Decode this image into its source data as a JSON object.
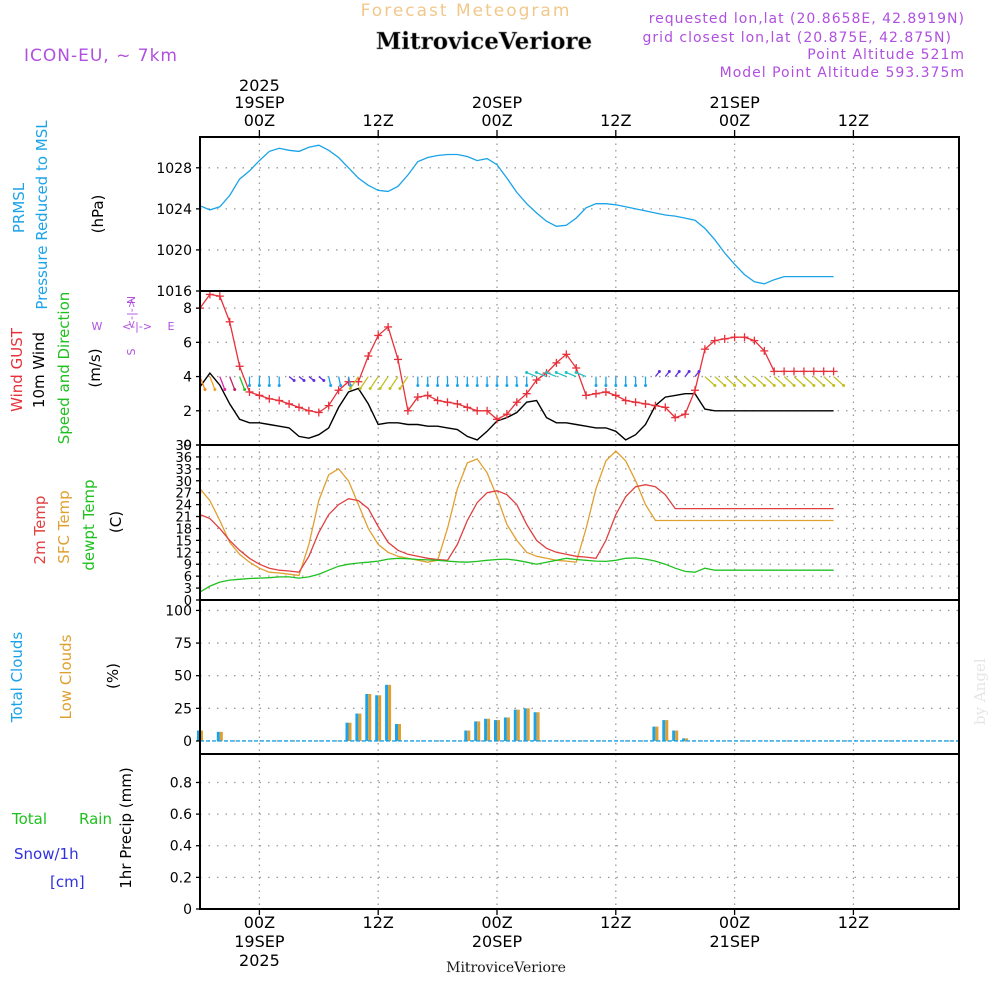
{
  "header": {
    "forecast_title": "Forecast Meteogram",
    "location": "MitroviceVeriore",
    "model": "ICON-EU, ~ 7km",
    "requested": "requested lon,lat (20.8658E, 42.8919N)",
    "grid_closest": "grid closest lon,lat (20.875E, 42.875N)",
    "point_alt": "Point Altitude 521m",
    "model_alt": "Model Point Altitude 593.375m",
    "credit": "by Angel",
    "footer_location": "MitroviceVeriore"
  },
  "time_axis": {
    "start": "2025-09-18T18:00Z",
    "hours": 65,
    "top_labels": [
      {
        "h": 6,
        "lines": [
          "2025",
          "19SEP",
          "00Z"
        ]
      },
      {
        "h": 18,
        "lines": [
          "12Z"
        ]
      },
      {
        "h": 30,
        "lines": [
          "20SEP",
          "00Z"
        ]
      },
      {
        "h": 42,
        "lines": [
          "12Z"
        ]
      },
      {
        "h": 54,
        "lines": [
          "21SEP",
          "00Z"
        ]
      },
      {
        "h": 66,
        "lines": [
          "12Z"
        ]
      }
    ],
    "bottom_labels": [
      {
        "h": 6,
        "lines": [
          "00Z",
          "19SEP",
          "2025"
        ]
      },
      {
        "h": 18,
        "lines": [
          "12Z"
        ]
      },
      {
        "h": 30,
        "lines": [
          "00Z",
          "20SEP"
        ]
      },
      {
        "h": 42,
        "lines": [
          "12Z"
        ]
      },
      {
        "h": 54,
        "lines": [
          "00Z",
          "21SEP"
        ]
      },
      {
        "h": 66,
        "lines": [
          "12Z"
        ]
      }
    ]
  },
  "colors": {
    "pressure": "#1aa3e8",
    "gust": "#e8303a",
    "wind": "#000000",
    "t2m": "#e04040",
    "sfc": "#e0a030",
    "dewpt": "#20c020",
    "total_clouds": "#1aa3e8",
    "low_clouds": "#e0a030",
    "rain": "#20c020",
    "snow": "#3030e0",
    "violet": "#b050e0",
    "title_orange": "#f2c88a"
  },
  "panel_labels": {
    "pressure": [
      "PRMSL",
      "Pressure Reduced to MSL",
      "(hPa)"
    ],
    "wind": [
      "Wind GUST",
      "10m Wind",
      "Speed and Direction",
      "(m/s)"
    ],
    "compass": {
      "n": "N",
      "s": "S",
      "w": "W",
      "e": "E",
      "arrow": "<-|->"
    },
    "temp": [
      "2m Temp",
      "SFC Temp",
      "dewpt Temp",
      "(C)"
    ],
    "clouds": [
      "Total Clouds",
      "Low Clouds",
      "(%)"
    ],
    "precip": [
      "Total",
      "Rain",
      "Snow/1h",
      "[cm]",
      "1hr Precip (mm)"
    ]
  },
  "chart_data": [
    {
      "type": "line",
      "title": "PRMSL Pressure Reduced to MSL",
      "ylabel": "(hPa)",
      "ylim": [
        1016,
        1031
      ],
      "yticks": [
        1016,
        1020,
        1024,
        1028
      ],
      "x_hours": [
        0,
        1,
        2,
        3,
        4,
        5,
        6,
        7,
        8,
        9,
        10,
        11,
        12,
        13,
        14,
        15,
        16,
        17,
        18,
        19,
        20,
        21,
        22,
        23,
        24,
        25,
        26,
        27,
        28,
        29,
        30,
        31,
        32,
        33,
        34,
        35,
        36,
        37,
        38,
        39,
        40,
        41,
        42,
        43,
        44,
        45,
        46,
        47,
        48,
        49,
        50,
        51,
        52,
        53,
        54,
        55,
        56,
        57,
        58,
        59,
        60,
        61,
        62,
        63,
        64
      ],
      "series": [
        {
          "name": "PRMSL",
          "values": [
            1024.3,
            1023.9,
            1024.2,
            1025.3,
            1026.9,
            1027.7,
            1028.7,
            1029.6,
            1029.9,
            1029.7,
            1029.6,
            1030.0,
            1030.2,
            1029.7,
            1029.0,
            1028.0,
            1027.0,
            1026.3,
            1025.8,
            1025.7,
            1026.2,
            1027.3,
            1028.6,
            1029.0,
            1029.2,
            1029.3,
            1029.3,
            1029.1,
            1028.7,
            1028.9,
            1028.3,
            1027.0,
            1025.6,
            1024.5,
            1023.6,
            1022.8,
            1022.3,
            1022.4,
            1023.1,
            1024.1,
            1024.5,
            1024.5,
            1024.4,
            1024.2,
            1024.0,
            1023.8,
            1023.6,
            1023.4,
            1023.3,
            1023.1,
            1022.9,
            1022.1,
            1021.0,
            1019.7,
            1018.6,
            1017.6,
            1016.9,
            1016.7,
            1017.1,
            1017.4,
            1017.4,
            1017.4,
            1017.4,
            1017.4,
            1017.4
          ]
        }
      ]
    },
    {
      "type": "line",
      "title": "Wind GUST / 10m Wind Speed and Direction",
      "ylabel": "(m/s)",
      "ylim": [
        0,
        9
      ],
      "yticks": [
        0,
        2,
        4,
        6,
        8
      ],
      "x_hours": [
        0,
        1,
        2,
        3,
        4,
        5,
        6,
        7,
        8,
        9,
        10,
        11,
        12,
        13,
        14,
        15,
        16,
        17,
        18,
        19,
        20,
        21,
        22,
        23,
        24,
        25,
        26,
        27,
        28,
        29,
        30,
        31,
        32,
        33,
        34,
        35,
        36,
        37,
        38,
        39,
        40,
        41,
        42,
        43,
        44,
        45,
        46,
        47,
        48,
        49,
        50,
        51,
        52,
        53,
        54,
        55,
        56,
        57,
        58,
        59,
        60,
        61,
        62,
        63,
        64
      ],
      "series": [
        {
          "name": "Wind GUST",
          "values": [
            8.0,
            8.8,
            8.7,
            7.2,
            4.6,
            3.1,
            2.9,
            2.7,
            2.6,
            2.4,
            2.2,
            2.0,
            1.9,
            2.3,
            3.2,
            3.7,
            3.7,
            5.2,
            6.4,
            6.9,
            5.0,
            2.0,
            2.8,
            2.9,
            2.6,
            2.5,
            2.4,
            2.2,
            2.0,
            2.0,
            1.5,
            1.8,
            2.5,
            3.0,
            3.8,
            4.2,
            4.8,
            5.3,
            4.5,
            2.9,
            3.0,
            3.1,
            2.9,
            2.6,
            2.5,
            2.4,
            2.3,
            2.2,
            1.6,
            1.8,
            3.2,
            5.6,
            6.1,
            6.2,
            6.3,
            6.3,
            6.1,
            5.5,
            4.3,
            4.3,
            4.3,
            4.3,
            4.3,
            4.3,
            4.3
          ]
        },
        {
          "name": "10m Wind",
          "values": [
            3.4,
            4.2,
            3.5,
            2.4,
            1.5,
            1.3,
            1.3,
            1.2,
            1.1,
            1.0,
            0.5,
            0.4,
            0.6,
            1.0,
            2.2,
            3.1,
            3.3,
            2.4,
            1.2,
            1.3,
            1.3,
            1.2,
            1.2,
            1.1,
            1.1,
            1.0,
            0.9,
            0.5,
            0.3,
            0.8,
            1.4,
            1.6,
            1.9,
            2.5,
            2.6,
            1.6,
            1.3,
            1.3,
            1.2,
            1.1,
            1.0,
            1.0,
            0.8,
            0.3,
            0.6,
            1.2,
            2.3,
            2.8,
            2.9,
            3.0,
            3.0,
            2.1,
            2.0,
            2.0,
            2.0,
            2.0,
            2.0,
            2.0,
            2.0,
            2.0,
            2.0,
            2.0,
            2.0,
            2.0,
            2.0
          ]
        }
      ]
    },
    {
      "type": "line",
      "title": "2m Temp / SFC Temp / dewpt Temp",
      "ylabel": "(C)",
      "ylim": [
        0,
        39
      ],
      "yticks": [
        0,
        3,
        6,
        9,
        12,
        15,
        18,
        21,
        24,
        27,
        30,
        33,
        36,
        39
      ],
      "x_hours": [
        0,
        1,
        2,
        3,
        4,
        5,
        6,
        7,
        8,
        9,
        10,
        11,
        12,
        13,
        14,
        15,
        16,
        17,
        18,
        19,
        20,
        21,
        22,
        23,
        24,
        25,
        26,
        27,
        28,
        29,
        30,
        31,
        32,
        33,
        34,
        35,
        36,
        37,
        38,
        39,
        40,
        41,
        42,
        43,
        44,
        45,
        46,
        47,
        48,
        49,
        50,
        51,
        52,
        53,
        54,
        55,
        56,
        57,
        58,
        59,
        60,
        61,
        62,
        63,
        64
      ],
      "series": [
        {
          "name": "2m Temp",
          "values": [
            21.5,
            20.5,
            18.0,
            15.0,
            12.5,
            10.5,
            9.0,
            8.0,
            7.5,
            7.3,
            7.0,
            11.0,
            17.0,
            21.5,
            24.0,
            25.5,
            25.0,
            23.0,
            18.5,
            14.5,
            12.5,
            11.5,
            11.0,
            10.5,
            10.2,
            10.0,
            14.0,
            20.0,
            24.5,
            27.0,
            27.5,
            26.5,
            24.0,
            19.0,
            15.0,
            13.0,
            12.0,
            11.5,
            11.0,
            10.8,
            10.5,
            15.0,
            21.5,
            26.0,
            28.5,
            29.0,
            28.5,
            26.5,
            23.0,
            23.0,
            23.0,
            23.0,
            23.0,
            23.0,
            23.0,
            23.0,
            23.0,
            23.0,
            23.0,
            23.0,
            23.0,
            23.0,
            23.0,
            23.0,
            23.0
          ]
        },
        {
          "name": "SFC Temp",
          "values": [
            28.0,
            25.0,
            20.0,
            14.5,
            11.5,
            9.5,
            8.0,
            7.0,
            6.8,
            6.5,
            6.2,
            14.0,
            25.0,
            31.5,
            33.0,
            30.0,
            24.0,
            18.0,
            14.0,
            12.0,
            11.0,
            10.5,
            10.0,
            9.5,
            10.0,
            18.0,
            28.0,
            34.5,
            35.5,
            32.0,
            26.0,
            19.0,
            15.0,
            12.0,
            11.0,
            10.5,
            10.0,
            9.8,
            9.5,
            18.0,
            28.0,
            35.0,
            37.5,
            35.0,
            30.0,
            24.0,
            20.0,
            20.0,
            20.0,
            20.0,
            20.0,
            20.0,
            20.0,
            20.0,
            20.0,
            20.0,
            20.0,
            20.0,
            20.0,
            20.0,
            20.0,
            20.0,
            20.0,
            20.0,
            20.0
          ]
        },
        {
          "name": "dewpt Temp",
          "values": [
            2.0,
            3.5,
            4.5,
            5.0,
            5.2,
            5.4,
            5.5,
            5.6,
            5.8,
            5.8,
            5.5,
            5.8,
            6.5,
            7.5,
            8.5,
            9.0,
            9.3,
            9.5,
            9.8,
            10.3,
            10.5,
            10.4,
            10.2,
            10.1,
            10.0,
            9.8,
            9.6,
            9.5,
            9.7,
            10.0,
            10.2,
            10.3,
            10.0,
            9.5,
            9.0,
            9.5,
            10.0,
            10.5,
            10.2,
            10.0,
            9.8,
            9.7,
            10.0,
            10.5,
            10.6,
            10.3,
            9.8,
            9.0,
            8.0,
            7.2,
            7.0,
            8.0,
            7.5,
            7.5,
            7.5,
            7.5,
            7.5,
            7.5,
            7.5,
            7.5,
            7.5,
            7.5,
            7.5,
            7.5,
            7.5
          ]
        }
      ]
    },
    {
      "type": "bar",
      "title": "Total Clouds / Low Clouds",
      "ylabel": "(%)",
      "ylim": [
        -10,
        108
      ],
      "yticks": [
        0,
        25,
        50,
        75,
        100
      ],
      "x_hours": [
        0,
        1,
        2,
        3,
        4,
        5,
        6,
        7,
        8,
        9,
        10,
        11,
        12,
        13,
        14,
        15,
        16,
        17,
        18,
        19,
        20,
        21,
        22,
        23,
        24,
        25,
        26,
        27,
        28,
        29,
        30,
        31,
        32,
        33,
        34,
        35,
        36,
        37,
        38,
        39,
        40,
        41,
        42,
        43,
        44,
        45,
        46,
        47,
        48,
        49,
        50,
        51,
        52,
        53,
        54,
        55,
        56,
        57,
        58,
        59,
        60,
        61,
        62,
        63,
        64
      ],
      "series": [
        {
          "name": "Total Clouds",
          "values": [
            8,
            0,
            7,
            0,
            0,
            0,
            0,
            0,
            0,
            0,
            0,
            0,
            0,
            0,
            0,
            14,
            21,
            36,
            35,
            43,
            13,
            0,
            0,
            0,
            0,
            0,
            0,
            8,
            15,
            17,
            16,
            18,
            24,
            25,
            22,
            0,
            0,
            0,
            0,
            0,
            0,
            0,
            0,
            0,
            0,
            0,
            11,
            16,
            8,
            2,
            0,
            0,
            0,
            0,
            0,
            0,
            0,
            0,
            0,
            0,
            0,
            0,
            0,
            0,
            0
          ]
        },
        {
          "name": "Low Clouds",
          "values": [
            8,
            0,
            7,
            0,
            0,
            0,
            0,
            0,
            0,
            0,
            0,
            0,
            0,
            0,
            0,
            14,
            21,
            36,
            35,
            43,
            13,
            0,
            0,
            0,
            0,
            0,
            0,
            8,
            15,
            17,
            16,
            18,
            24,
            25,
            22,
            0,
            0,
            0,
            0,
            0,
            0,
            0,
            0,
            0,
            0,
            0,
            11,
            16,
            8,
            2,
            0,
            0,
            0,
            0,
            0,
            0,
            0,
            0,
            0,
            0,
            0,
            0,
            0,
            0,
            0
          ]
        }
      ]
    },
    {
      "type": "bar",
      "title": "Total Rain / Snow/1h",
      "ylabel": "1hr Precip (mm)",
      "ylim": [
        0,
        0.98
      ],
      "yticks": [
        0,
        0.2,
        0.4,
        0.6,
        0.8
      ],
      "x_hours": [
        0,
        1,
        2,
        3,
        4,
        5,
        6,
        7,
        8,
        9,
        10,
        11,
        12,
        13,
        14,
        15,
        16,
        17,
        18,
        19,
        20,
        21,
        22,
        23,
        24,
        25,
        26,
        27,
        28,
        29,
        30,
        31,
        32,
        33,
        34,
        35,
        36,
        37,
        38,
        39,
        40,
        41,
        42,
        43,
        44,
        45,
        46,
        47,
        48,
        49,
        50,
        51,
        52,
        53,
        54,
        55,
        56,
        57,
        58,
        59,
        60,
        61,
        62,
        63,
        64
      ],
      "series": [
        {
          "name": "Total Rain",
          "values": [
            0,
            0,
            0,
            0,
            0,
            0,
            0,
            0,
            0,
            0,
            0,
            0,
            0,
            0,
            0,
            0,
            0,
            0,
            0,
            0,
            0,
            0,
            0,
            0,
            0,
            0,
            0,
            0,
            0,
            0,
            0,
            0,
            0,
            0,
            0,
            0,
            0,
            0,
            0,
            0,
            0,
            0,
            0,
            0,
            0,
            0,
            0,
            0,
            0,
            0,
            0,
            0,
            0,
            0,
            0,
            0,
            0,
            0,
            0,
            0,
            0,
            0,
            0,
            0,
            0
          ]
        }
      ]
    }
  ]
}
